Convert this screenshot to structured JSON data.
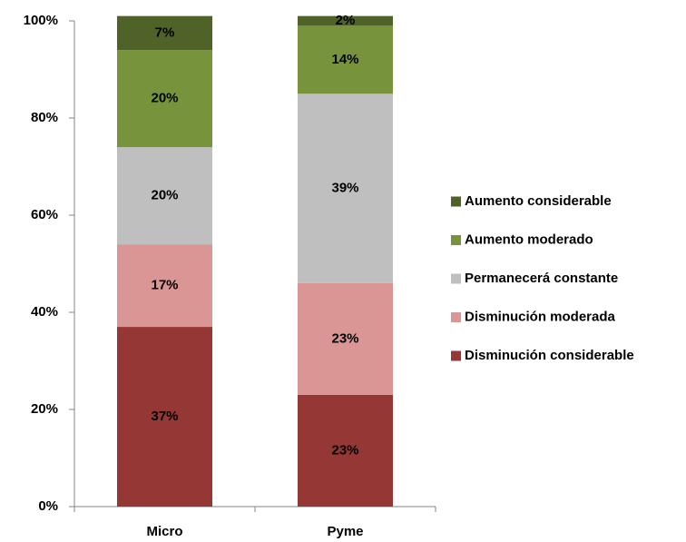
{
  "chart_data": {
    "type": "stacked_bar",
    "categories": [
      "Micro",
      "Pyme"
    ],
    "series": [
      {
        "name": "Disminución considerable",
        "color": "#953735",
        "values": [
          37,
          23
        ],
        "value_labels": [
          "37%",
          "23%"
        ]
      },
      {
        "name": "Disminución moderada",
        "color": "#d99694",
        "values": [
          17,
          23
        ],
        "value_labels": [
          "17%",
          "23%"
        ]
      },
      {
        "name": "Permanecerá constante",
        "color": "#bfbfbf",
        "values": [
          20,
          39
        ],
        "value_labels": [
          "20%",
          "39%"
        ]
      },
      {
        "name": "Aumento moderado",
        "color": "#77933c",
        "values": [
          20,
          14
        ],
        "value_labels": [
          "20%",
          "14%"
        ]
      },
      {
        "name": "Aumento considerable",
        "color": "#4f6228",
        "values": [
          7,
          2
        ],
        "value_labels": [
          "7%",
          "2%"
        ]
      }
    ],
    "ylim": [
      0,
      100
    ],
    "yticks": [
      {
        "value": 0,
        "label": "0%"
      },
      {
        "value": 20,
        "label": "20%"
      },
      {
        "value": 40,
        "label": "40%"
      },
      {
        "value": 60,
        "label": "60%"
      },
      {
        "value": 80,
        "label": "80%"
      },
      {
        "value": 100,
        "label": "100%"
      }
    ],
    "grid": false,
    "legend": "right"
  }
}
